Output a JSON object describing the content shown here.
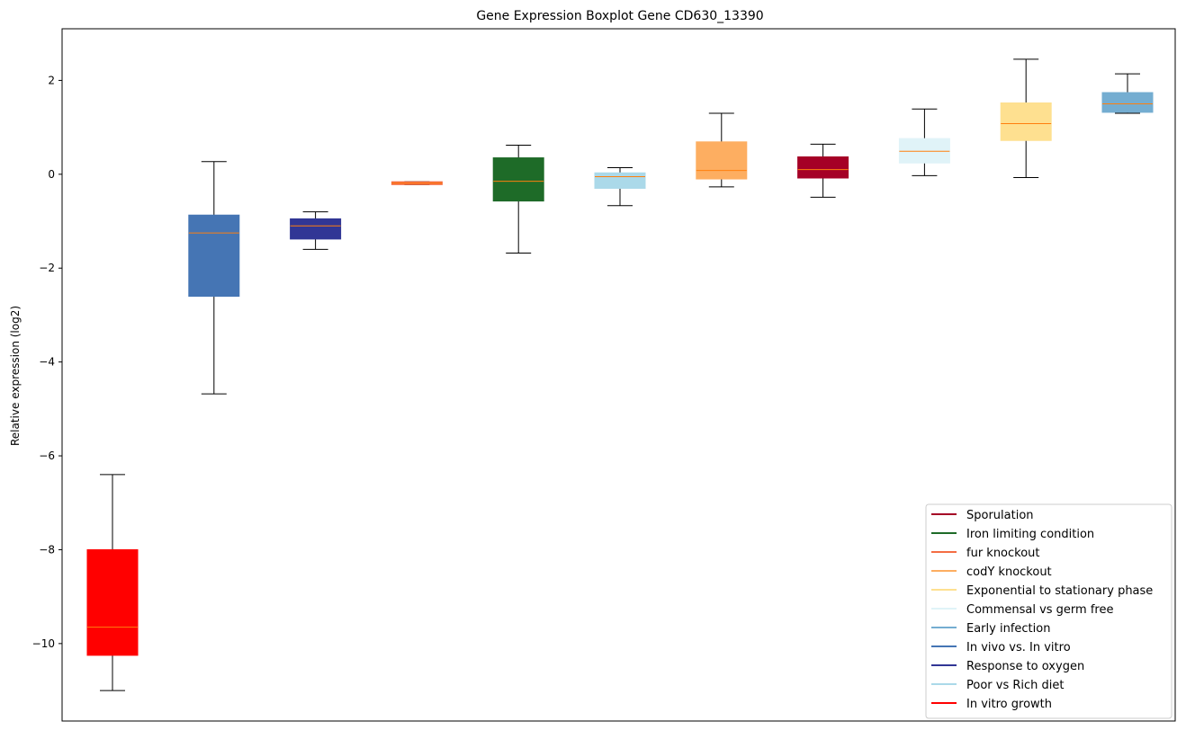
{
  "chart_data": {
    "type": "boxplot",
    "title": "Gene Expression Boxplot Gene CD630_13390",
    "xlabel": "",
    "ylabel": "Relative expression (log2)",
    "ylim": [
      -11.65,
      3.1
    ],
    "yticks": [
      2,
      0,
      -2,
      -4,
      -6,
      -8,
      -10
    ],
    "ytick_labels": [
      "2",
      "0",
      "−2",
      "−4",
      "−6",
      "−8",
      "−10"
    ],
    "legend_position": "lower right",
    "boxes": [
      {
        "name": "In vitro growth",
        "color": "#ff0000",
        "whisker_low": -11.0,
        "q1": -10.25,
        "median": -9.65,
        "q3": -8.0,
        "whisker_high": -6.4
      },
      {
        "name": "In vivo vs. In vitro",
        "color": "#4575b4",
        "whisker_low": -4.68,
        "q1": -2.6,
        "median": -1.25,
        "q3": -0.87,
        "whisker_high": 0.27
      },
      {
        "name": "Response to oxygen",
        "color": "#313695",
        "whisker_low": -1.6,
        "q1": -1.38,
        "median": -1.1,
        "q3": -0.95,
        "whisker_high": -0.8
      },
      {
        "name": "fur knockout",
        "color": "#f46d43",
        "whisker_low": -0.22,
        "q1": -0.22,
        "median": -0.19,
        "q3": -0.16,
        "whisker_high": -0.16
      },
      {
        "name": "Iron limiting condition",
        "color": "#1e6b28",
        "whisker_low": -1.68,
        "q1": -0.57,
        "median": -0.15,
        "q3": 0.35,
        "whisker_high": 0.62
      },
      {
        "name": "Poor vs Rich diet",
        "color": "#abd9e9",
        "whisker_low": -0.67,
        "q1": -0.3,
        "median": -0.05,
        "q3": 0.03,
        "whisker_high": 0.14
      },
      {
        "name": "codY knockout",
        "color": "#fdae61",
        "whisker_low": -0.27,
        "q1": -0.1,
        "median": 0.08,
        "q3": 0.69,
        "whisker_high": 1.3
      },
      {
        "name": "Sporulation",
        "color": "#a50026",
        "whisker_low": -0.49,
        "q1": -0.08,
        "median": 0.1,
        "q3": 0.37,
        "whisker_high": 0.64
      },
      {
        "name": "Commensal vs germ free",
        "color": "#e0f3f8",
        "whisker_low": -0.03,
        "q1": 0.24,
        "median": 0.49,
        "q3": 0.76,
        "whisker_high": 1.39
      },
      {
        "name": "Exponential to stationary phase",
        "color": "#fee090",
        "whisker_low": -0.07,
        "q1": 0.72,
        "median": 1.08,
        "q3": 1.52,
        "whisker_high": 2.45
      },
      {
        "name": "Early infection",
        "color": "#74add1",
        "whisker_low": 1.3,
        "q1": 1.32,
        "median": 1.5,
        "q3": 1.74,
        "whisker_high": 2.14
      }
    ],
    "median_color": "#ff7f0e",
    "legend": [
      {
        "label": "Sporulation",
        "color": "#a50026"
      },
      {
        "label": "Iron limiting condition",
        "color": "#1e6b28"
      },
      {
        "label": "fur knockout",
        "color": "#f46d43"
      },
      {
        "label": "codY knockout",
        "color": "#fdae61"
      },
      {
        "label": "Exponential to stationary phase",
        "color": "#fee090"
      },
      {
        "label": "Commensal vs germ free",
        "color": "#e0f3f8"
      },
      {
        "label": "Early infection",
        "color": "#74add1"
      },
      {
        "label": "In vivo vs. In vitro",
        "color": "#4575b4"
      },
      {
        "label": "Response to oxygen",
        "color": "#313695"
      },
      {
        "label": "Poor vs Rich diet",
        "color": "#abd9e9"
      },
      {
        "label": "In vitro growth",
        "color": "#ff0000"
      }
    ]
  }
}
